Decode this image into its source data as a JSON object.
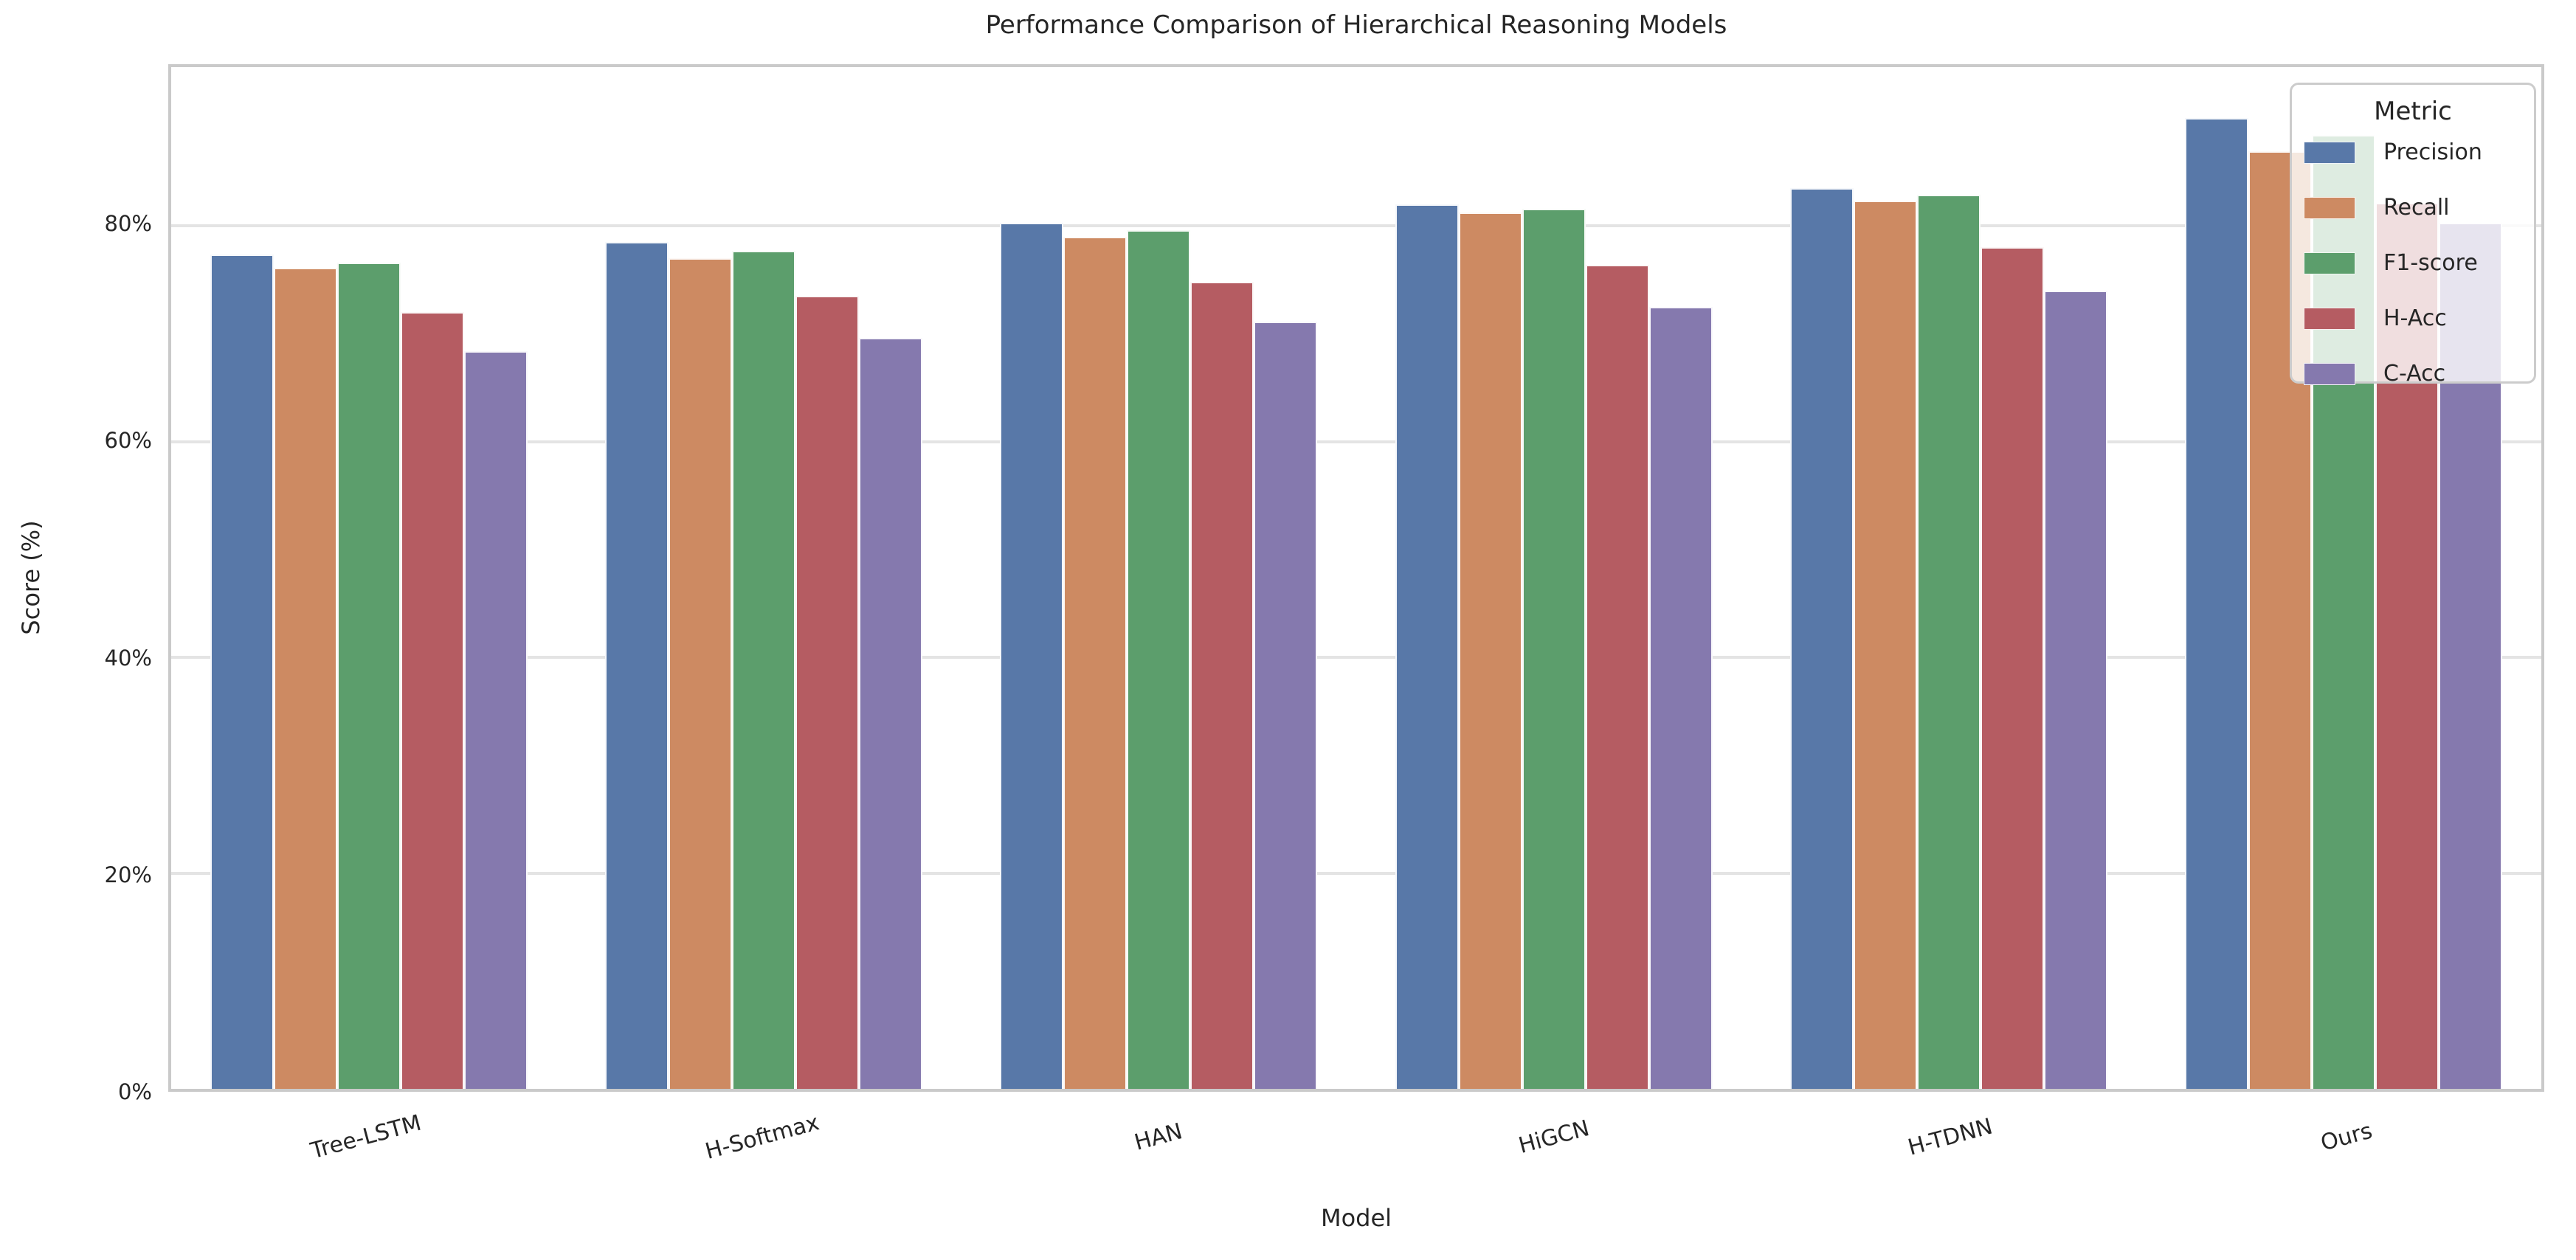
{
  "chart_data": {
    "type": "bar",
    "title": "Performance Comparison of Hierarchical Reasoning Models",
    "xlabel": "Model",
    "ylabel": "Score (%)",
    "legend_title": "Metric",
    "legend_position": "upper right",
    "grid": "horizontal",
    "categories": [
      "Tree-LSTM",
      "H-Softmax",
      "HAN",
      "HiGCN",
      "H-TDNN",
      "Ours"
    ],
    "series": [
      {
        "name": "Precision",
        "color": "#5878A8",
        "values": [
          77.3,
          78.5,
          80.3,
          82.0,
          83.5,
          90.0
        ]
      },
      {
        "name": "Recall",
        "color": "#CD8A62",
        "values": [
          76.1,
          77.0,
          79.0,
          81.2,
          82.3,
          86.9
        ]
      },
      {
        "name": "F1-score",
        "color": "#5C9E6C",
        "values": [
          76.6,
          77.7,
          79.6,
          81.6,
          82.9,
          88.4
        ]
      },
      {
        "name": "H-Acc",
        "color": "#B55C62",
        "values": [
          72.0,
          73.5,
          74.8,
          76.4,
          78.0,
          82.1
        ]
      },
      {
        "name": "C-Acc",
        "color": "#8579AE",
        "values": [
          68.4,
          69.6,
          71.1,
          72.5,
          74.0,
          80.3
        ]
      }
    ],
    "yticks": {
      "values": [
        0,
        20,
        40,
        60,
        80
      ],
      "labels": [
        "0%",
        "20%",
        "40%",
        "60%",
        "80%"
      ]
    },
    "ylim": [
      0,
      94.7
    ],
    "style": {
      "grid_color": "#e4e4e4",
      "spine_color": "#cacaca",
      "text_color": "#262626",
      "bar_edge_color": "#ffffff",
      "legend_background": "rgba(255,255,255,0.8)"
    }
  }
}
